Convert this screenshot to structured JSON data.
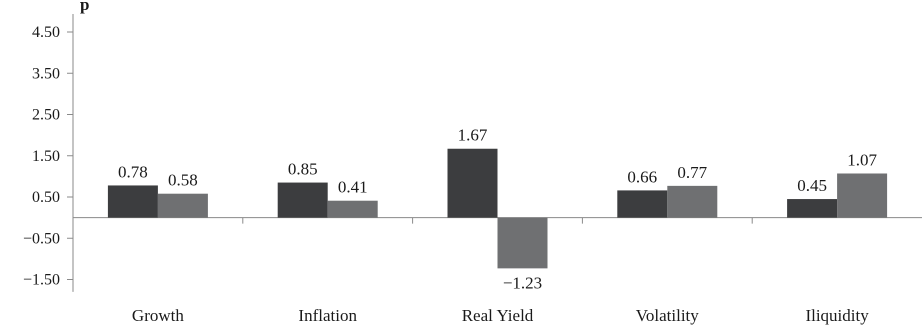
{
  "chart_data": {
    "type": "bar",
    "ylabel": "p",
    "categories": [
      "Growth",
      "Inflation",
      "Real Yield",
      "Volatility",
      "Iliquidity"
    ],
    "series": [
      {
        "values": [
          0.78,
          0.85,
          1.67,
          0.66,
          0.45
        ],
        "color": "#3c3d3f"
      },
      {
        "values": [
          0.58,
          0.41,
          -1.23,
          0.77,
          1.07
        ],
        "color": "#6f7072"
      }
    ],
    "data_labels": [
      [
        "0.78",
        "0.85",
        "1.67",
        "0.66",
        "0.45"
      ],
      [
        "0.58",
        "0.41",
        "−1.23",
        "0.77",
        "1.07"
      ]
    ],
    "yticks": [
      4.5,
      3.5,
      2.5,
      1.5,
      0.5,
      -0.5,
      -1.5
    ],
    "ytick_labels": [
      "4.50",
      "3.50",
      "2.50",
      "1.50",
      "0.50",
      "−0.50",
      "−1.50"
    ],
    "ylim": [
      -1.75,
      5.0
    ],
    "grid": false,
    "legend": "none"
  }
}
